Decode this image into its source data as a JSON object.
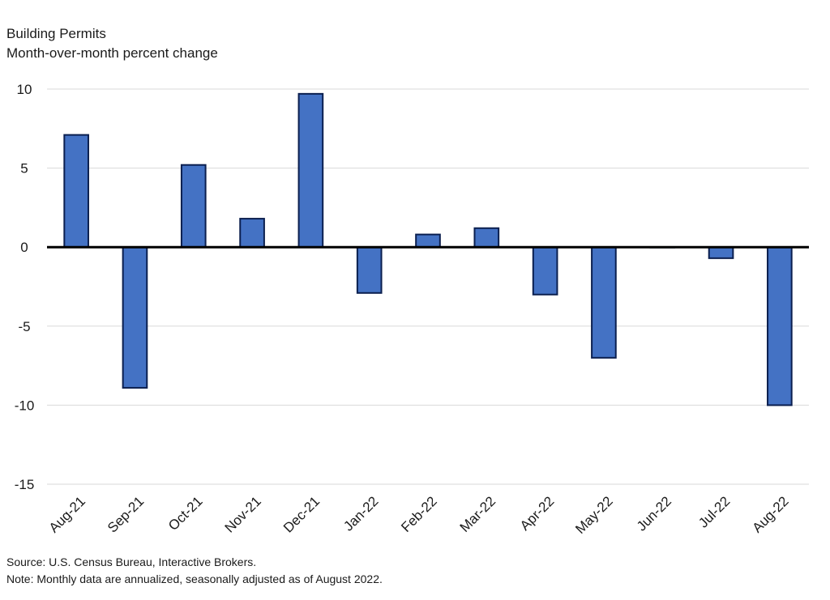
{
  "chart_data": {
    "type": "bar",
    "title": "Building Permits",
    "subtitle": "Month-over-month percent change",
    "xlabel": "",
    "ylabel": "",
    "ylim": [
      -15,
      10
    ],
    "yticks": [
      10,
      5,
      0,
      -5,
      -10,
      -15
    ],
    "ytick_labels": [
      "10",
      "5",
      "0",
      "-5",
      "-10",
      "-15"
    ],
    "grid": true,
    "legend": "none",
    "categories": [
      "Aug-21",
      "Sep-21",
      "Oct-21",
      "Nov-21",
      "Dec-21",
      "Jan-22",
      "Feb-22",
      "Mar-22",
      "Apr-22",
      "May-22",
      "Jun-22",
      "Jul-22",
      "Aug-22"
    ],
    "values": [
      7.1,
      -8.9,
      5.2,
      1.8,
      9.7,
      -2.9,
      0.8,
      1.2,
      -3.0,
      -7.0,
      0.0,
      -0.7,
      -10.0
    ],
    "bar_color": "#4472c4",
    "bar_edge_color": "#0b1f4f",
    "zero_line_color": "#000000",
    "grid_color": "#d9d9d9"
  },
  "notes": {
    "source": "Source: U.S. Census Bureau, Interactive Brokers.",
    "note": "Note: Monthly data are annualized, seasonally adjusted as of August 2022."
  }
}
